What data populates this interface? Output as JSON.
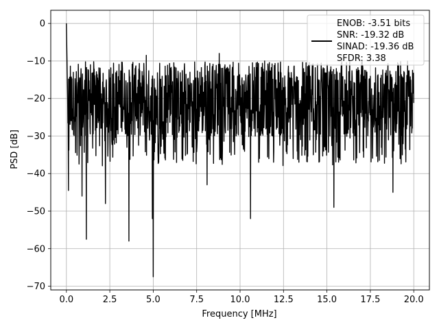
{
  "chart_data": {
    "type": "line",
    "title": "",
    "xlabel": "Frequency [MHz]",
    "ylabel": "PSD [dB]",
    "xlim": [
      -0.9,
      20.9
    ],
    "ylim": [
      -71,
      3.5
    ],
    "xticks": [
      0.0,
      2.5,
      5.0,
      7.5,
      10.0,
      12.5,
      15.0,
      17.5,
      20.0
    ],
    "xtick_labels": [
      "0.0",
      "2.5",
      "5.0",
      "7.5",
      "10.0",
      "12.5",
      "15.0",
      "17.5",
      "20.0"
    ],
    "yticks": [
      0,
      -10,
      -20,
      -30,
      -40,
      -50,
      -60,
      -70
    ],
    "ytick_labels": [
      "0",
      "−10",
      "−20",
      "−30",
      "−40",
      "−50",
      "−60",
      "−70"
    ],
    "grid": true,
    "legend_position": "top-right",
    "series": [
      {
        "color": "#000000",
        "x_range": [
          0,
          20
        ],
        "noise_floor_typical": [
          -30,
          -12
        ],
        "peak": {
          "x": 0.0,
          "y": 0.0
        },
        "notable_dips": [
          {
            "x": 0.12,
            "y": -44.5
          },
          {
            "x": 0.9,
            "y": -46
          },
          {
            "x": 1.15,
            "y": -57.5
          },
          {
            "x": 2.25,
            "y": -48
          },
          {
            "x": 3.6,
            "y": -58
          },
          {
            "x": 4.95,
            "y": -52
          },
          {
            "x": 5.0,
            "y": -67.5
          },
          {
            "x": 8.1,
            "y": -43
          },
          {
            "x": 10.6,
            "y": -52
          },
          {
            "x": 15.4,
            "y": -49
          },
          {
            "x": 18.8,
            "y": -45
          }
        ],
        "notable_peaks": [
          {
            "x": 0.0,
            "y": 0.0
          },
          {
            "x": 4.6,
            "y": -8.5
          },
          {
            "x": 8.8,
            "y": -8
          }
        ]
      }
    ],
    "legend_entries": [
      "ENOB: -3.51 bits",
      "SNR: -19.32 dB",
      "SINAD: -19.36 dB",
      "SFDR: 3.38"
    ]
  }
}
